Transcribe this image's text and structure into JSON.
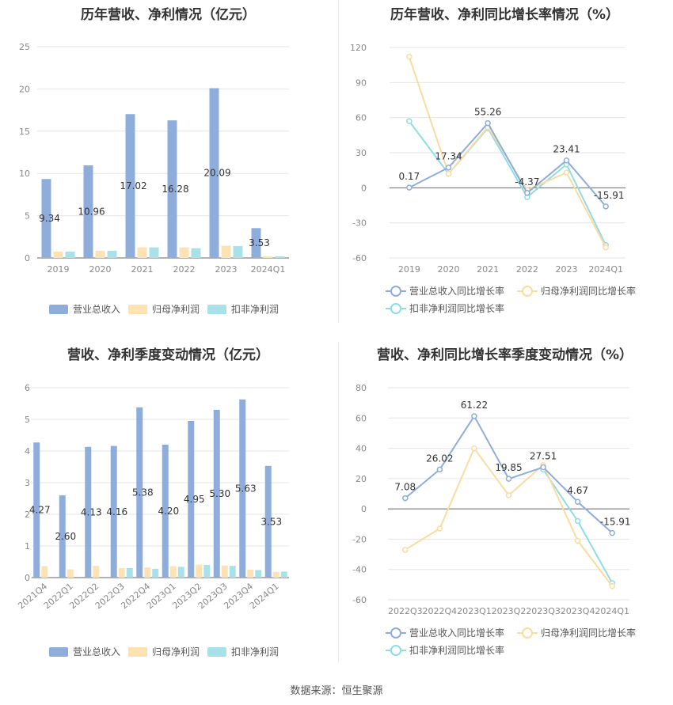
{
  "source": "数据来源：恒生聚源",
  "colors": {
    "revenue": "#8eaddb",
    "net_profit": "#fde2b4",
    "deducted_profit": "#a8e2e8",
    "revenue_line": "#8eaddb",
    "net_profit_line": "#fcdba0",
    "deducted_profit_line": "#8fdde5"
  },
  "chart_data": [
    {
      "id": "annual-revenue-profit",
      "type": "bar",
      "title": "历年营收、净利情况（亿元）",
      "categories": [
        "2019",
        "2020",
        "2021",
        "2022",
        "2023",
        "2024Q1"
      ],
      "yticks": [
        0,
        5,
        10,
        15,
        20,
        25
      ],
      "ylim": [
        0,
        25
      ],
      "series": [
        {
          "name": "营业总收入",
          "values": [
            9.34,
            10.96,
            17.02,
            16.28,
            20.09,
            3.53
          ],
          "labels": [
            "9.34",
            "10.96",
            "17.02",
            "16.28",
            "20.09",
            "3.53"
          ]
        },
        {
          "name": "归母净利润",
          "values": [
            0.75,
            0.85,
            1.25,
            1.25,
            1.45,
            0.2
          ]
        },
        {
          "name": "扣非净利润",
          "values": [
            0.75,
            0.85,
            1.25,
            1.15,
            1.4,
            0.2
          ]
        }
      ],
      "legend_position": "bottom"
    },
    {
      "id": "annual-growth",
      "type": "line",
      "title": "历年营收、净利同比增长率情况（%）",
      "categories": [
        "2019",
        "2020",
        "2021",
        "2022",
        "2023",
        "2024Q1"
      ],
      "yticks": [
        -60,
        -30,
        0,
        30,
        60,
        90,
        120
      ],
      "ylim": [
        -60,
        120
      ],
      "series": [
        {
          "name": "营业总收入同比增长率",
          "values": [
            0.17,
            17.34,
            55.26,
            -4.37,
            23.41,
            -15.91
          ],
          "labels": [
            "0.17",
            "17.34",
            "55.26",
            "-4.37",
            "23.41",
            "-15.91"
          ]
        },
        {
          "name": "归母净利润同比增长率",
          "values": [
            112,
            12,
            52,
            -2,
            13,
            -51
          ]
        },
        {
          "name": "扣非净利润同比增长率",
          "values": [
            57,
            12,
            51,
            -8,
            20,
            -49
          ]
        }
      ],
      "legend_position": "bottom"
    },
    {
      "id": "quarterly-revenue-profit",
      "type": "bar",
      "title": "营收、净利季度变动情况（亿元）",
      "categories": [
        "2021Q4",
        "2022Q1",
        "2022Q2",
        "2022Q3",
        "2022Q4",
        "2023Q1",
        "2023Q2",
        "2023Q3",
        "2023Q4",
        "2024Q1"
      ],
      "yticks": [
        0,
        1,
        2,
        3,
        4,
        5,
        6
      ],
      "ylim": [
        0,
        6
      ],
      "series": [
        {
          "name": "营业总收入",
          "values": [
            4.27,
            2.6,
            4.13,
            4.16,
            5.38,
            4.2,
            4.95,
            5.3,
            5.63,
            3.53
          ],
          "labels": [
            "4.27",
            "2.60",
            "4.13",
            "4.16",
            "5.38",
            "4.20",
            "4.95",
            "5.30",
            "5.63",
            "3.53"
          ]
        },
        {
          "name": "归母净利润",
          "values": [
            0.36,
            0.26,
            0.37,
            0.3,
            0.32,
            0.36,
            0.41,
            0.38,
            0.25,
            0.18
          ]
        },
        {
          "name": "扣非净利润",
          "values": [
            0.0,
            0.0,
            0.0,
            0.3,
            0.28,
            0.34,
            0.4,
            0.37,
            0.24,
            0.19
          ]
        }
      ],
      "legend_position": "bottom"
    },
    {
      "id": "quarterly-growth",
      "type": "line",
      "title": "营收、净利同比增长率季度变动情况（%）",
      "categories": [
        "2022Q3",
        "2022Q4",
        "2023Q1",
        "2023Q2",
        "2023Q3",
        "2023Q4",
        "2024Q1"
      ],
      "yticks": [
        -60,
        -40,
        -20,
        0,
        20,
        40,
        60,
        80
      ],
      "ylim": [
        -60,
        80
      ],
      "series": [
        {
          "name": "营业总收入同比增长率",
          "values": [
            7.08,
            26.02,
            61.22,
            19.85,
            27.51,
            4.67,
            -15.91
          ],
          "labels": [
            "7.08",
            "26.02",
            "61.22",
            "19.85",
            "27.51",
            "4.67",
            "-15.91"
          ]
        },
        {
          "name": "归母净利润同比增长率",
          "values": [
            -27,
            -13,
            40,
            9,
            29,
            -21,
            -51
          ]
        },
        {
          "name": "扣非净利润同比增长率",
          "values": [
            null,
            null,
            null,
            null,
            26,
            -8,
            -49
          ]
        }
      ],
      "legend_position": "bottom"
    }
  ]
}
